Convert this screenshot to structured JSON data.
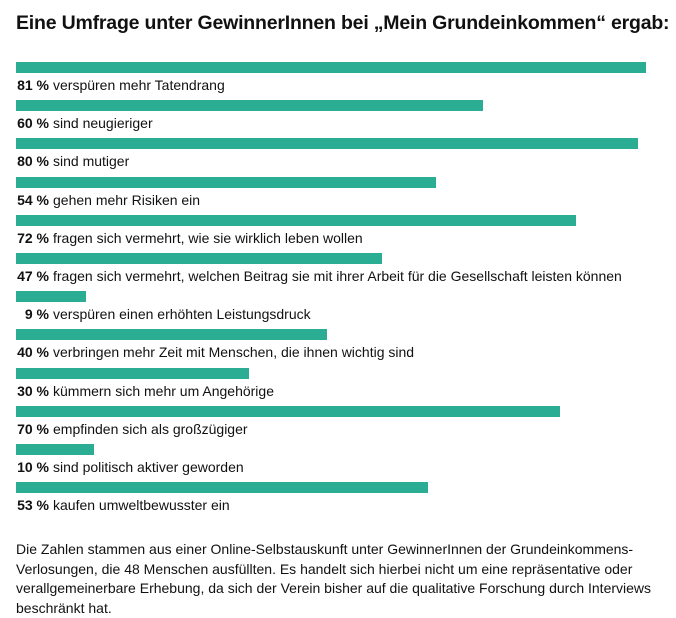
{
  "title": "Eine Umfrage unter GewinnerInnen bei „Mein Grundeinkommen“ ergab:",
  "colors": {
    "bar": "#2bad94"
  },
  "chart_data": {
    "type": "bar",
    "orientation": "horizontal",
    "title": "Eine Umfrage unter GewinnerInnen bei „Mein Grundeinkommen“ ergab:",
    "xlim": [
      0,
      81
    ],
    "grid": false,
    "legend": "none",
    "unit": "%",
    "items": [
      {
        "value": 81,
        "pct": "81 %",
        "label": "verspüren mehr Tatendrang"
      },
      {
        "value": 60,
        "pct": "60 %",
        "label": "sind neugieriger"
      },
      {
        "value": 80,
        "pct": "80 %",
        "label": "sind mutiger"
      },
      {
        "value": 54,
        "pct": "54 %",
        "label": "gehen mehr Risiken ein"
      },
      {
        "value": 72,
        "pct": "72 %",
        "label": "fragen sich vermehrt, wie sie wirklich leben wollen"
      },
      {
        "value": 47,
        "pct": "47 %",
        "label": "fragen sich vermehrt, welchen Beitrag sie mit ihrer Arbeit für die Gesellschaft leisten können"
      },
      {
        "value": 9,
        "pct": "9 %",
        "label": "verspüren einen erhöhten Leistungsdruck"
      },
      {
        "value": 40,
        "pct": "40 %",
        "label": "verbringen mehr Zeit mit Menschen, die ihnen wichtig sind"
      },
      {
        "value": 30,
        "pct": "30 %",
        "label": "kümmern sich mehr um Angehörige"
      },
      {
        "value": 70,
        "pct": "70 %",
        "label": "empfinden sich als großzügiger"
      },
      {
        "value": 10,
        "pct": "10 %",
        "label": "sind politisch aktiver geworden"
      },
      {
        "value": 53,
        "pct": "53 %",
        "label": "kaufen umweltbewusster ein"
      }
    ]
  },
  "footnote": "Die Zahlen stammen aus einer Online-Selbstauskunft unter GewinnerInnen der Grundeinkommens-Verlosungen, die 48 Menschen ausfüllten. Es handelt sich hierbei nicht um eine repräsentative oder verallgemeinerbare Erhebung, da sich der Verein bisher auf die qualitative Forschung durch Interviews beschränkt hat."
}
